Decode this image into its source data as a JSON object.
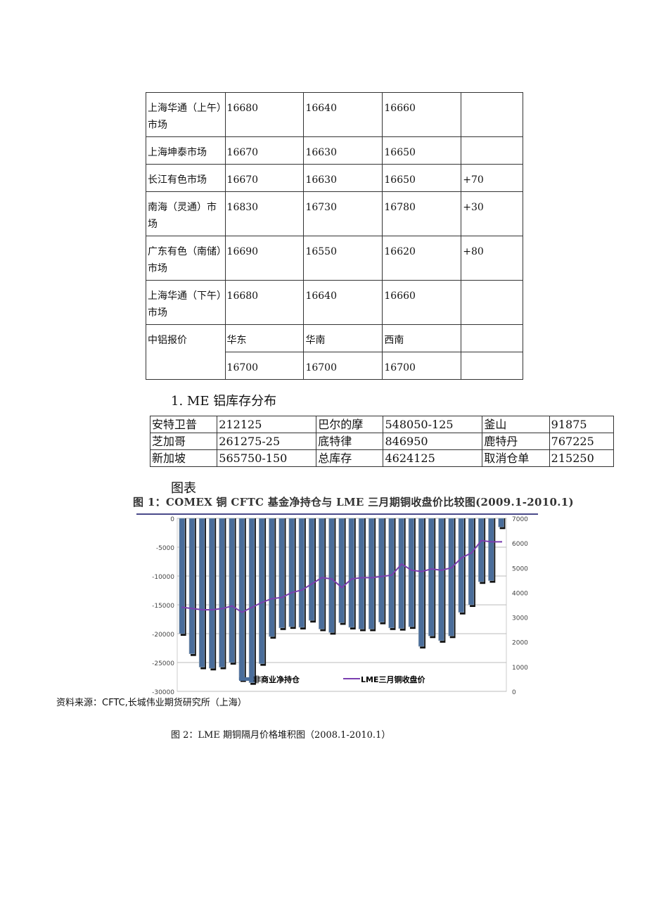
{
  "price_table": {
    "rows": [
      [
        "上海华通（上午）市场",
        "16680",
        "16640",
        "16660",
        ""
      ],
      [
        "上海坤泰市场",
        "16670",
        "16630",
        "16650",
        ""
      ],
      [
        "长江有色市场",
        "16670",
        "16630",
        "16650",
        "+70"
      ],
      [
        "南海（灵通）市场",
        "16830",
        "16730",
        "16780",
        "+30"
      ],
      [
        "广东有色（南储）市场",
        "16690",
        "16550",
        "16620",
        "+80"
      ],
      [
        "上海华通（下午）市场",
        "16680",
        "16640",
        "16660",
        ""
      ]
    ],
    "zhonglv": {
      "label": "中铝报价",
      "regions": [
        "华东",
        "华南",
        "西南"
      ],
      "prices": [
        "16700",
        "16700",
        "16700"
      ]
    }
  },
  "section_heading": "1. ME 铝库存分布",
  "stock_table": [
    [
      "安特卫普",
      "212125",
      "巴尔的摩",
      "548050-125",
      "釜山",
      "91875"
    ],
    [
      "芝加哥",
      "261275-25",
      "底特律",
      "846950",
      "鹿特丹",
      "767225"
    ],
    [
      "新加坡",
      "565750-150",
      "总库存",
      "4624125",
      "取消仓单",
      "215250"
    ]
  ],
  "chart_heading": "图表",
  "chart_data": {
    "type": "bar+line",
    "title": "图 1：COMEX 铜 CFTC 基金净持仓与 LME 三月期铜收盘价比较图(2009.1-2010.1)",
    "y_left": {
      "range": [
        -30000,
        0
      ],
      "ticks": [
        "0",
        "-5000",
        "-10000",
        "-15000",
        "-20000",
        "-25000",
        "-30000"
      ]
    },
    "y_right": {
      "range": [
        0,
        7000
      ],
      "ticks": [
        "7000",
        "6000",
        "5000",
        "4000",
        "3000",
        "2000",
        "1000",
        "0"
      ]
    },
    "grid": true,
    "legend_position": "bottom",
    "series": [
      {
        "name": "非商业净持仓",
        "type": "bar",
        "color": "#4a6d9a",
        "values": [
          -20000,
          -23500,
          -25800,
          -26000,
          -25800,
          -25000,
          -28000,
          -28500,
          -25200,
          -20500,
          -19000,
          -18800,
          -18900,
          -17700,
          -19200,
          -19800,
          -18100,
          -18900,
          -19200,
          -19200,
          -18000,
          -19000,
          -19100,
          -18800,
          -22200,
          -20400,
          -21200,
          -20400,
          -16300,
          -15000,
          -11000,
          -10800,
          -1500
        ]
      },
      {
        "name": "LME三月铜收盘价",
        "type": "line",
        "color": "#7b3fb0",
        "values": [
          3400,
          3350,
          3300,
          3300,
          3350,
          3450,
          3200,
          3400,
          3600,
          3750,
          3800,
          4000,
          4100,
          4350,
          4600,
          4550,
          4200,
          4550,
          4600,
          4600,
          4650,
          4700,
          5150,
          4900,
          4850,
          4950,
          4900,
          5000,
          5400,
          5600,
          6100,
          6050,
          6050
        ]
      }
    ]
  },
  "source": "资料来源：CFTC,长城伟业期货研究所（上海）",
  "figure2_caption": "图 2：LME 期铜隔月价格堆积图（2008.1-2010.1）"
}
